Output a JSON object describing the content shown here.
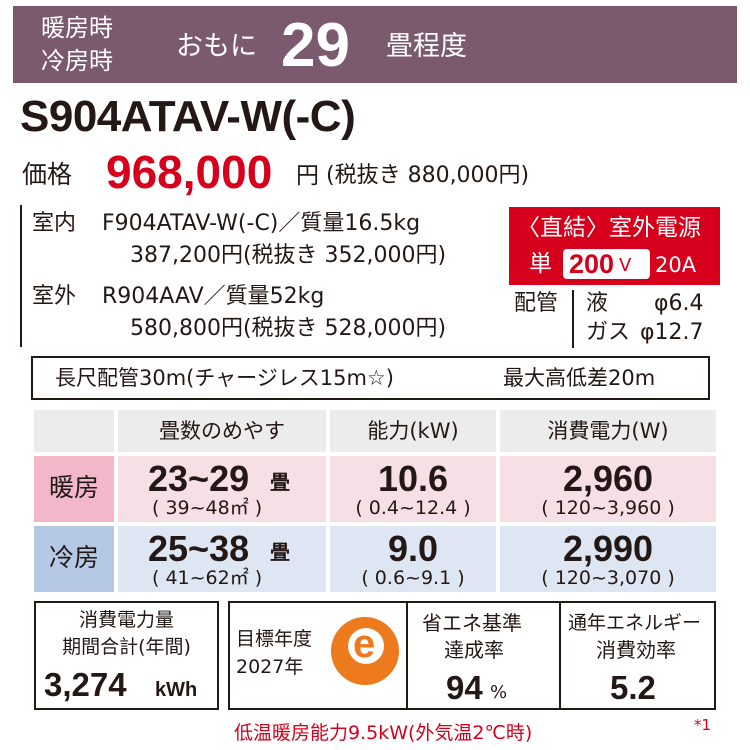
{
  "banner": {
    "heating_label": "暖房時",
    "cooling_label": "冷房時",
    "mainly": "おもに",
    "tatami": "29",
    "tatami_unit": "畳程度",
    "color": "#7b5a6f"
  },
  "model": "S904ATAV-W(-C)",
  "price": {
    "label": "価格",
    "value": "968,000",
    "unit": "円",
    "tax_excluded": "(税抜き 880,000円)"
  },
  "indoor": {
    "label": "室内",
    "model_weight": "F904ATAV-W(-C)／質量16.5kg",
    "price": "387,200円(税抜き 352,000円)"
  },
  "outdoor": {
    "label": "室外",
    "model_weight": "R904AAV／質量52kg",
    "price": "580,800円(税抜き 528,000円)"
  },
  "power_badge": {
    "line1": "〈直結〉室外電源",
    "single": "単",
    "voltage": "200",
    "voltage_unit": "V",
    "ampere": "20A",
    "color": "#d6001c"
  },
  "piping": {
    "label": "配管",
    "liquid_label": "液",
    "liquid_value": "φ6.4",
    "gas_label": "ガス",
    "gas_value": "φ12.7"
  },
  "long_piping": {
    "text": "長尺配管30m(チャージレス15m☆)",
    "height": "最大高低差20m"
  },
  "table": {
    "headers": [
      "畳数のめやす",
      "能力(kW)",
      "消費電力(W)"
    ],
    "heating": {
      "label": "暖房",
      "tatami": "23~29",
      "tatami_unit": "畳",
      "area": "( 39~48㎡ )",
      "capacity": "10.6",
      "capacity_range": "( 0.4~12.4 )",
      "power": "2,960",
      "power_range": "( 120~3,960 )"
    },
    "cooling": {
      "label": "冷房",
      "tatami": "25~38",
      "tatami_unit": "畳",
      "area": "( 41~62㎡ )",
      "capacity": "9.0",
      "capacity_range": "( 0.6~9.1 )",
      "power": "2,990",
      "power_range": "( 120~3,070 )"
    }
  },
  "annual": {
    "line1": "消費電力量",
    "line2": "期間合計(年間)",
    "value": "3,274",
    "unit": "kWh"
  },
  "target": {
    "line1": "目標年度",
    "line2": "2027年",
    "logo_letter": "e",
    "logo_color": "#ee7a1e"
  },
  "achievement": {
    "line1": "省エネ基準",
    "line2": "達成率",
    "value": "94",
    "unit": "%"
  },
  "apf": {
    "line1": "通年エネルギー",
    "line2": "消費効率",
    "value": "5.2"
  },
  "footnote": "低温暖房能力9.5kW(外気温2℃時)",
  "footnote_mark": "*1"
}
